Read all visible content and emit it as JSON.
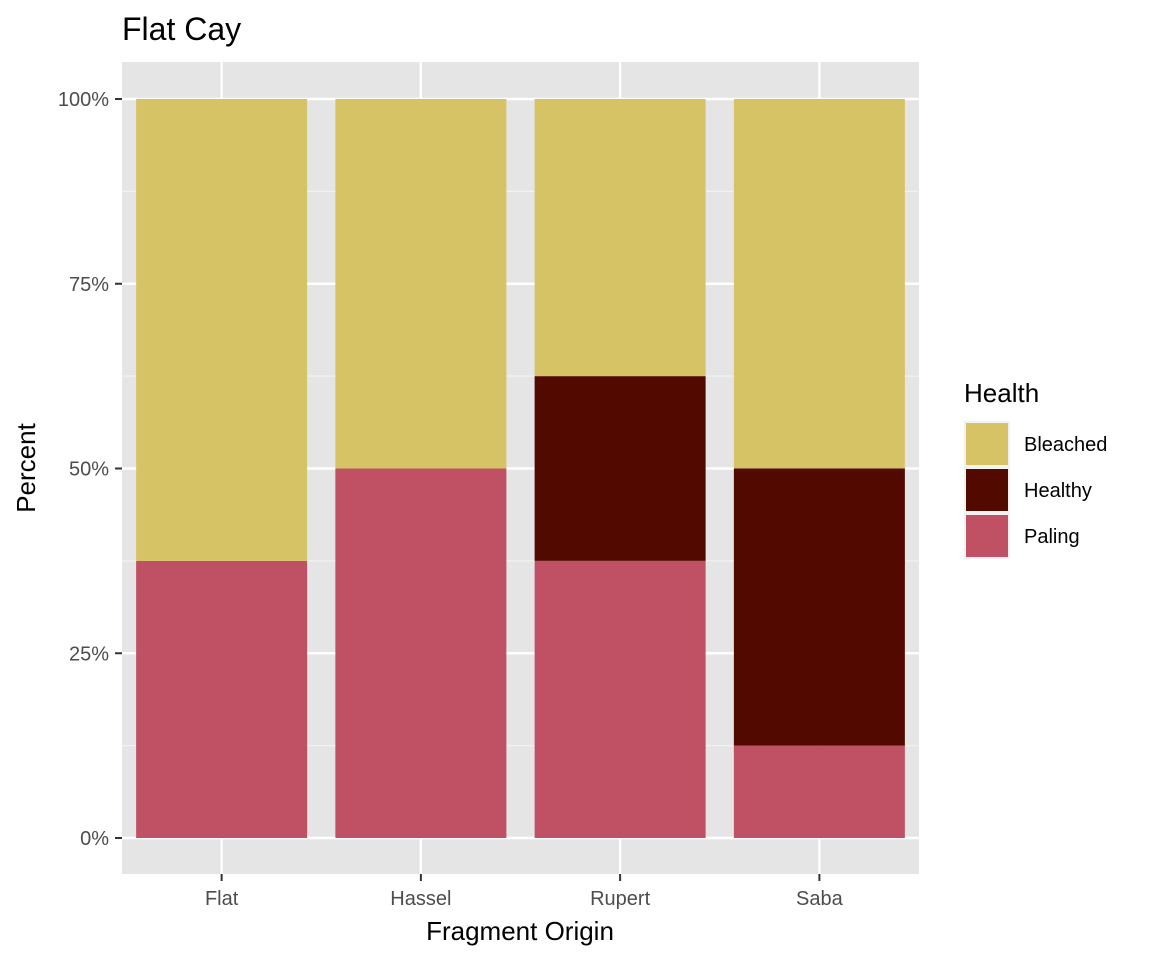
{
  "chart_data": {
    "type": "bar",
    "stacked": true,
    "normalized": true,
    "title": "Flat Cay",
    "xlabel": "Fragment Origin",
    "ylabel": "Percent",
    "categories": [
      "Flat",
      "Hassel",
      "Rupert",
      "Saba"
    ],
    "ylim": [
      0,
      100
    ],
    "yticks": [
      0,
      25,
      50,
      75,
      100
    ],
    "ytick_labels": [
      "0%",
      "25%",
      "50%",
      "75%",
      "100%"
    ],
    "grid": true,
    "legend": {
      "title": "Health",
      "placement": "right",
      "entries": [
        "Bleached",
        "Healthy",
        "Paling"
      ]
    },
    "series": [
      {
        "name": "Paling",
        "color": "#C05165",
        "values": [
          37.5,
          50,
          37.5,
          12.5
        ]
      },
      {
        "name": "Healthy",
        "color": "#520A00",
        "values": [
          0,
          0,
          25,
          37.5
        ]
      },
      {
        "name": "Bleached",
        "color": "#D6C366",
        "values": [
          62.5,
          50,
          37.5,
          50
        ]
      }
    ]
  }
}
